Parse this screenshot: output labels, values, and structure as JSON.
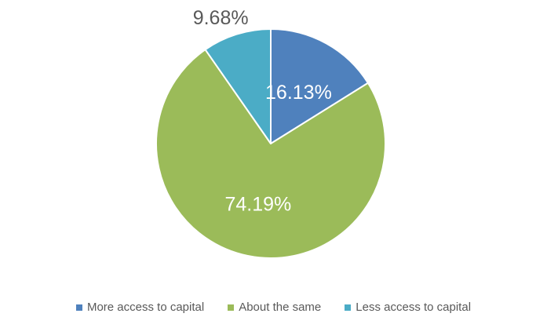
{
  "chart_data": {
    "type": "pie",
    "slices": [
      {
        "label": "More access to capital",
        "value": 16.13,
        "display": "16.13%",
        "color": "#4F81BD"
      },
      {
        "label": "About the same",
        "value": 74.19,
        "display": "74.19%",
        "color": "#9BBB59"
      },
      {
        "label": "Less access to capital",
        "value": 9.68,
        "display": "9.68%",
        "color": "#4BACC6"
      }
    ],
    "start_angle_deg": 0,
    "direction": "clockwise",
    "legend_position": "bottom",
    "data_label_colors": [
      "#ffffff",
      "#ffffff",
      "#595959"
    ]
  }
}
